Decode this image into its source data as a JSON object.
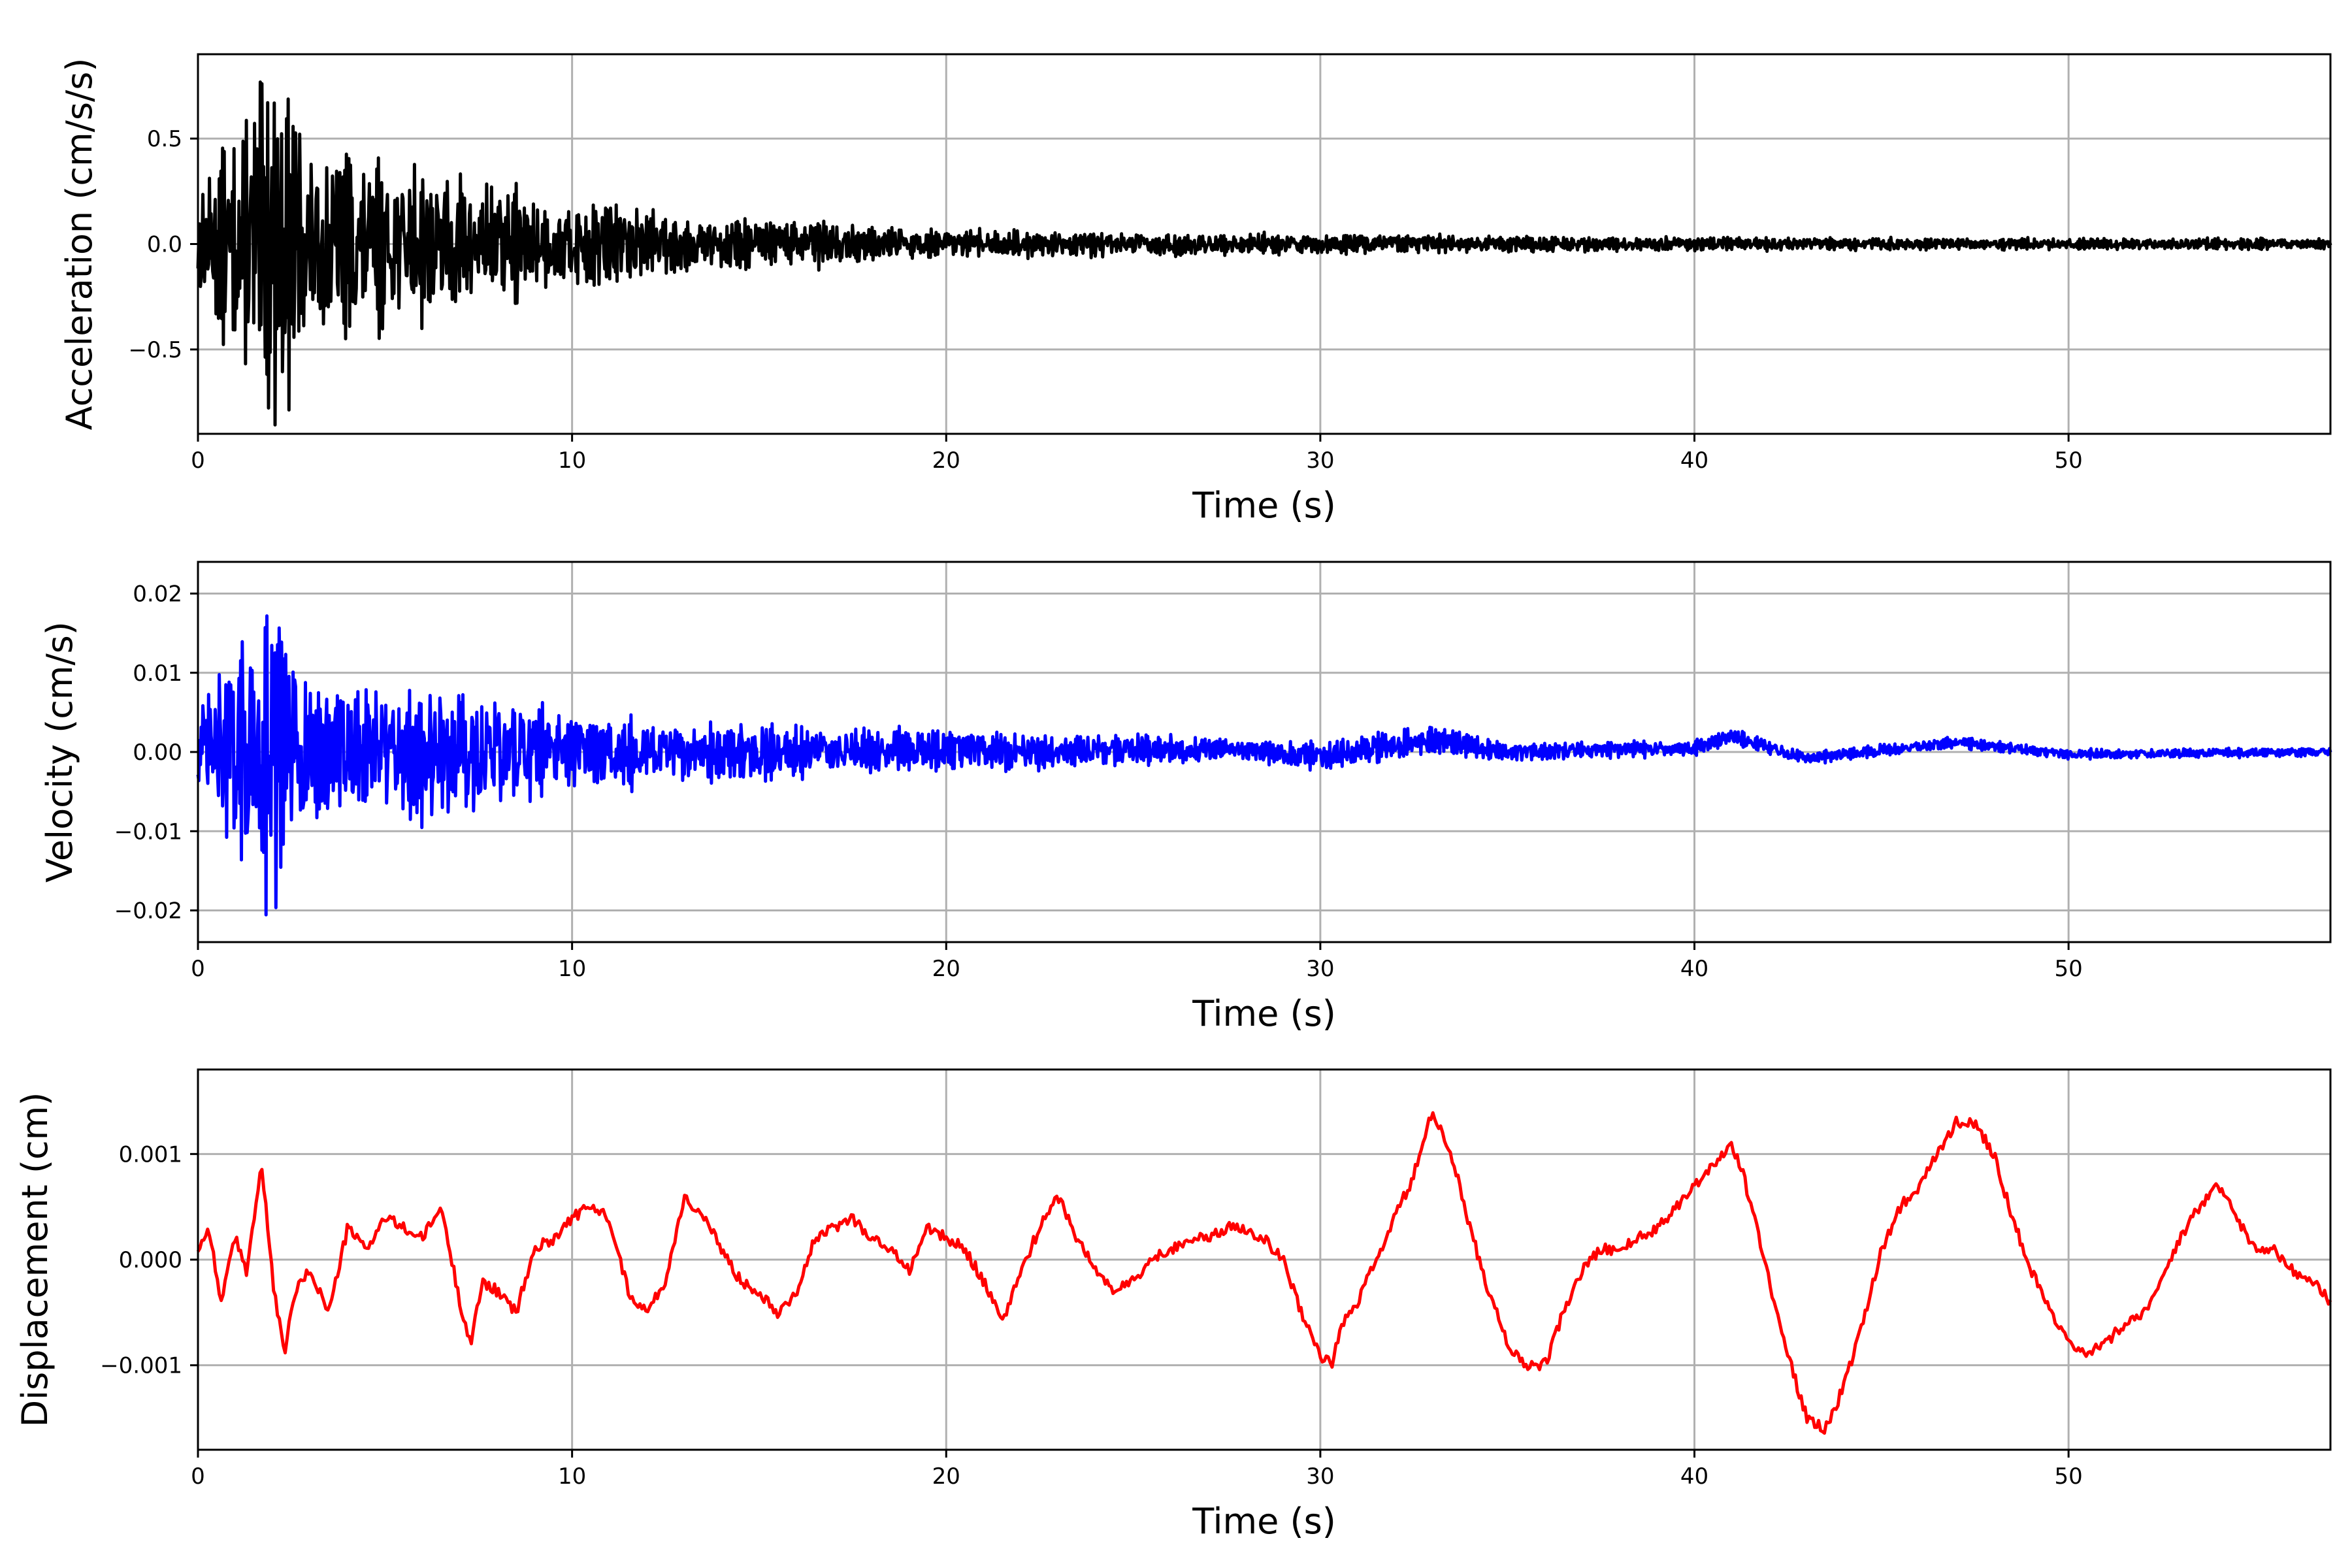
{
  "chart_data": [
    {
      "type": "line",
      "xlabel": "Time (s)",
      "ylabel": "Acceleration (cm/s/s)",
      "xlim": [
        0,
        57
      ],
      "ylim": [
        -0.9,
        0.9
      ],
      "xticks": [
        0,
        10,
        20,
        30,
        40,
        50
      ],
      "yticks": [
        -0.5,
        0.0,
        0.5
      ],
      "ytick_labels": [
        "−0.5",
        "0.0",
        "0.5"
      ],
      "grid": true,
      "series": [
        {
          "color": "#000000",
          "kind": "noise",
          "x": [
            0,
            0.5,
            1.0,
            1.5,
            2.0,
            2.5,
            3.0,
            4.0,
            5.0,
            6.0,
            7.0,
            8.0,
            9.0,
            10.0,
            11.0,
            12.0,
            14.0,
            16.0,
            17.0,
            18.0,
            20.0,
            25.0,
            30.0,
            35.0,
            40.0,
            45.0,
            50.0,
            57.0
          ],
          "envelope": [
            0.28,
            0.42,
            0.45,
            0.78,
            0.8,
            0.72,
            0.45,
            0.48,
            0.38,
            0.4,
            0.35,
            0.3,
            0.22,
            0.2,
            0.22,
            0.17,
            0.12,
            0.12,
            0.11,
            0.08,
            0.07,
            0.06,
            0.05,
            0.04,
            0.035,
            0.03,
            0.028,
            0.025
          ]
        }
      ]
    },
    {
      "type": "line",
      "xlabel": "Time (s)",
      "ylabel": "Velocity (cm/s)",
      "xlim": [
        0,
        57
      ],
      "ylim": [
        -0.024,
        0.024
      ],
      "xticks": [
        0,
        10,
        20,
        30,
        40,
        50
      ],
      "yticks": [
        -0.02,
        -0.01,
        0.0,
        0.01,
        0.02
      ],
      "ytick_labels": [
        "−0.02",
        "−0.01",
        "0.00",
        "0.01",
        "0.02"
      ],
      "grid": true,
      "series": [
        {
          "color": "#0000ff",
          "kind": "noise",
          "x": [
            0,
            1.0,
            1.5,
            2.0,
            2.5,
            3.0,
            4.0,
            5.0,
            6.0,
            7.0,
            8.0,
            9.0,
            10.0,
            12.0,
            15.0,
            17.0,
            20.0,
            22.0,
            25.0,
            28.0,
            30.0,
            33.0,
            35.0,
            40.0,
            41.0,
            43.0,
            47.0,
            50.0,
            57.0
          ],
          "baseline": [
            0,
            0,
            0,
            0,
            0,
            0,
            0,
            0,
            0,
            0,
            0,
            0,
            0,
            0,
            0,
            0,
            0.0005,
            0,
            0.0003,
            0.0003,
            -0.0007,
            0.0015,
            0,
            0.0005,
            0.002,
            -0.0008,
            0.0012,
            -0.0003,
            0
          ],
          "envelope": [
            0.007,
            0.013,
            0.017,
            0.02,
            0.016,
            0.011,
            0.009,
            0.008,
            0.01,
            0.009,
            0.008,
            0.006,
            0.006,
            0.004,
            0.004,
            0.003,
            0.003,
            0.0025,
            0.002,
            0.0015,
            0.0018,
            0.002,
            0.0012,
            0.001,
            0.001,
            0.0008,
            0.0008,
            0.0006,
            0.0006
          ]
        }
      ]
    },
    {
      "type": "line",
      "xlabel": "Time (s)",
      "ylabel": "Displacement (cm)",
      "xlim": [
        0,
        57
      ],
      "ylim": [
        -0.0018,
        0.0018
      ],
      "xticks": [
        0,
        10,
        20,
        30,
        40,
        50
      ],
      "yticks": [
        -0.001,
        0.0,
        0.001
      ],
      "ytick_labels": [
        "−0.001",
        "0.000",
        "0.001"
      ],
      "grid": true,
      "series": [
        {
          "color": "#ff0000",
          "kind": "trace",
          "x": [
            0,
            0.3,
            0.6,
            1.0,
            1.3,
            1.7,
            2.0,
            2.3,
            2.6,
            3.0,
            3.5,
            4.0,
            4.5,
            5.0,
            5.5,
            6.0,
            6.5,
            7.0,
            7.3,
            7.6,
            8.0,
            8.5,
            9.0,
            9.5,
            10.0,
            10.5,
            11.0,
            11.5,
            12.0,
            12.5,
            13.0,
            13.5,
            14.0,
            14.5,
            15.0,
            15.5,
            16.0,
            16.5,
            17.0,
            17.5,
            18.0,
            18.5,
            19.0,
            19.5,
            20.0,
            20.5,
            21.0,
            21.5,
            22.0,
            22.5,
            23.0,
            23.5,
            24.0,
            24.5,
            25.0,
            25.5,
            26.0,
            26.5,
            27.0,
            27.5,
            28.0,
            28.5,
            29.0,
            29.5,
            30.0,
            30.3,
            30.6,
            31.0,
            31.5,
            32.0,
            32.5,
            33.0,
            33.5,
            34.0,
            34.5,
            35.0,
            35.5,
            36.0,
            36.5,
            37.0,
            37.5,
            38.0,
            38.5,
            39.0,
            39.5,
            40.0,
            40.5,
            41.0,
            41.3,
            41.6,
            42.0,
            42.5,
            43.0,
            43.5,
            44.0,
            44.5,
            45.0,
            45.5,
            46.0,
            46.5,
            47.0,
            47.5,
            48.0,
            48.5,
            49.0,
            49.5,
            50.0,
            50.5,
            51.0,
            51.5,
            52.0,
            52.5,
            53.0,
            53.5,
            54.0,
            54.5,
            55.0,
            55.5,
            56.0,
            56.5,
            57.0
          ],
          "y": [
            0.0001,
            0.0003,
            -0.0004,
            0.0002,
            -0.0001,
            0.0009,
            -0.0002,
            -0.0009,
            -0.0003,
            -0.0001,
            -0.0005,
            0.0003,
            0.0001,
            0.0004,
            0.0003,
            0.0002,
            0.0005,
            -0.0004,
            -0.0008,
            -0.0002,
            -0.0003,
            -0.0005,
            0.0001,
            0.0002,
            0.0004,
            0.0005,
            0.0004,
            -0.0003,
            -0.0005,
            -0.0002,
            0.0006,
            0.0004,
            0.0001,
            -0.0002,
            -0.0003,
            -0.0005,
            -0.0003,
            0.0002,
            0.0003,
            0.0004,
            0.0002,
            0.0001,
            -0.0001,
            0.0003,
            0.0002,
            0.0001,
            -0.0002,
            -0.0006,
            -0.0001,
            0.0003,
            0.0006,
            0.0002,
            -0.0001,
            -0.0003,
            -0.0002,
            0.0,
            0.0001,
            0.0002,
            0.0002,
            0.0003,
            0.0003,
            0.0002,
            0.0,
            -0.0005,
            -0.0009,
            -0.001,
            -0.0006,
            -0.0004,
            0.0,
            0.0004,
            0.0008,
            0.0014,
            0.001,
            0.0003,
            -0.0003,
            -0.0008,
            -0.001,
            -0.001,
            -0.0005,
            -0.0001,
            0.0001,
            0.0001,
            0.0002,
            0.0003,
            0.0005,
            0.0007,
            0.0009,
            0.0011,
            0.0008,
            0.0004,
            -0.0002,
            -0.0009,
            -0.0015,
            -0.0016,
            -0.0012,
            -0.0006,
            0.0001,
            0.0005,
            0.0007,
            0.001,
            0.0013,
            0.0013,
            0.001,
            0.0004,
            -0.0001,
            -0.0005,
            -0.0008,
            -0.0009,
            -0.0008,
            -0.0006,
            -0.0005,
            -0.0002,
            0.0002,
            0.0005,
            0.0007,
            0.0004,
            0.0001,
            0.0001,
            -0.0001,
            -0.0002,
            -0.0004
          ]
        }
      ]
    }
  ]
}
